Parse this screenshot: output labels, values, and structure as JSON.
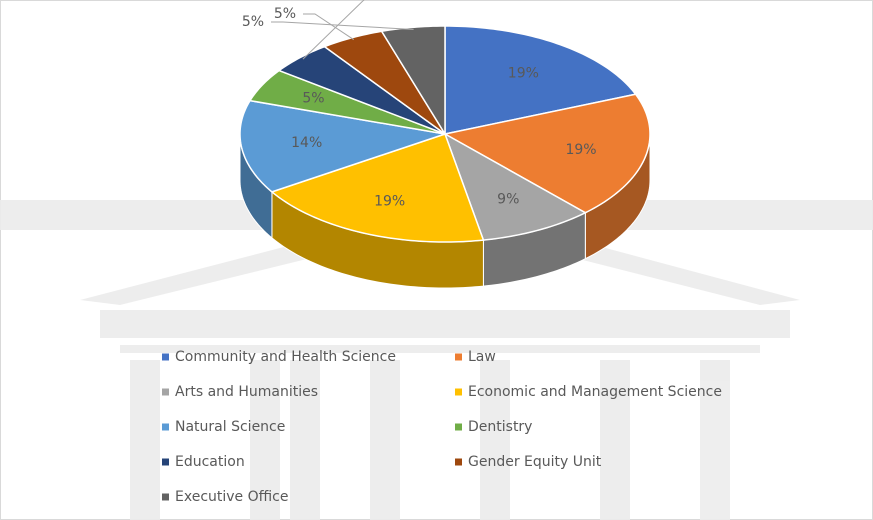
{
  "chart_data": {
    "type": "pie",
    "categories": [
      "Community and Health Science",
      "Law",
      "Arts and Humanities",
      "Economic and Management Science",
      "Natural Science",
      "Dentistry",
      "Education",
      "Gender Equity Unit",
      "Executive Office"
    ],
    "values": [
      19,
      19,
      9,
      19,
      14,
      5,
      5,
      5,
      5
    ],
    "value_labels": [
      "19%",
      "19%",
      "9%",
      "19%",
      "14%",
      "5%",
      "5%",
      "5%",
      "5%"
    ],
    "colors": [
      "#4472c4",
      "#ed7d31",
      "#a5a5a5",
      "#ffc000",
      "#5b9bd5",
      "#70ad47",
      "#264478",
      "#9e480e",
      "#636363"
    ],
    "legend": "bottom"
  }
}
